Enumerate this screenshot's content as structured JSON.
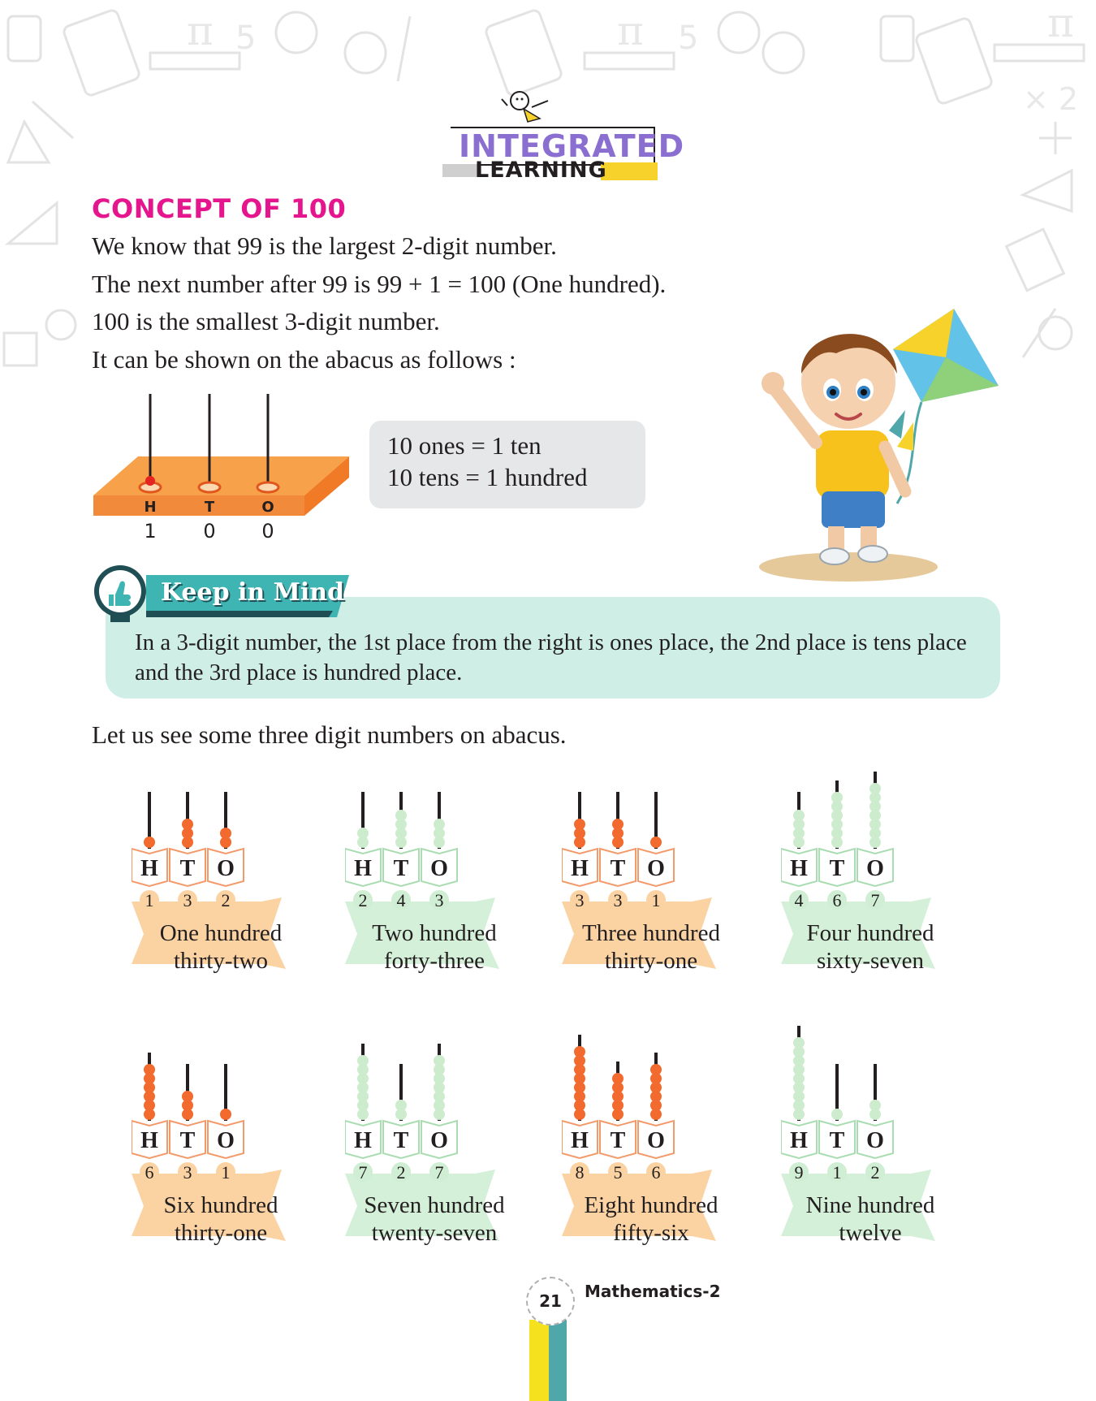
{
  "header": {
    "logo_line1": "INTEGRATED",
    "logo_line2": "LEARNING"
  },
  "title": "CONCEPT OF 100",
  "intro": [
    "We know that 99 is the largest 2-digit number.",
    "The next number after 99 is  99 + 1 = 100 (One hundred).",
    "100 is the smallest 3-digit number.",
    "It can be shown on the abacus as follows :"
  ],
  "base_abacus": {
    "places": [
      "H",
      "T",
      "O"
    ],
    "digits": [
      "1",
      "0",
      "0"
    ]
  },
  "equations": [
    "10 ones = 1 ten",
    "10 tens  = 1 hundred"
  ],
  "keep_in_mind": {
    "label": "Keep in Mind",
    "text": "In a 3-digit number, the 1st place from the right is ones place, the 2nd place is tens place and  the 3rd place  is hundred place."
  },
  "lead": "Let us see some three digit numbers on abacus.",
  "examples": [
    {
      "digits": [
        1,
        3,
        2
      ],
      "name": [
        "One hundred",
        "thirty-two"
      ],
      "theme": "orange"
    },
    {
      "digits": [
        2,
        4,
        3
      ],
      "name": [
        "Two hundred",
        "forty-three"
      ],
      "theme": "green"
    },
    {
      "digits": [
        3,
        3,
        1
      ],
      "name": [
        "Three hundred",
        "thirty-one"
      ],
      "theme": "orange"
    },
    {
      "digits": [
        4,
        6,
        7
      ],
      "name": [
        "Four hundred",
        "sixty-seven"
      ],
      "theme": "green"
    },
    {
      "digits": [
        6,
        3,
        1
      ],
      "name": [
        "Six hundred",
        "thirty-one"
      ],
      "theme": "orange"
    },
    {
      "digits": [
        7,
        2,
        7
      ],
      "name": [
        "Seven hundred",
        "twenty-seven"
      ],
      "theme": "green"
    },
    {
      "digits": [
        8,
        5,
        6
      ],
      "name": [
        "Eight hundred",
        "fifty-six"
      ],
      "theme": "orange"
    },
    {
      "digits": [
        9,
        1,
        2
      ],
      "name": [
        "Nine hundred",
        "twelve"
      ],
      "theme": "green"
    }
  ],
  "place_letters": [
    "H",
    "T",
    "O"
  ],
  "colors": {
    "title": "#e5168d",
    "bead_orange": "#f26a2e",
    "bead_green": "#cdeccd",
    "banner_orange": "#fbd3a3",
    "banner_green": "#d4f0d8",
    "keep_in_mind_bg": "#cfeee6",
    "keep_in_mind_banner": "#3fb5b3"
  },
  "footer": {
    "page_number": "21",
    "book_title": "Mathematics-2"
  }
}
